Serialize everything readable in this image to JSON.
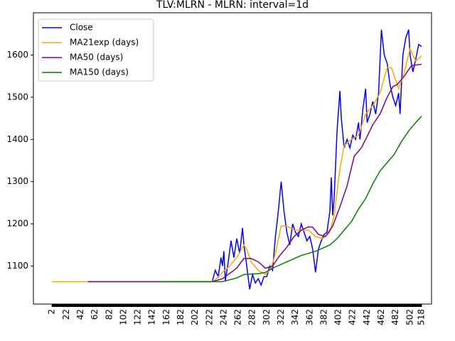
{
  "chart_data": {
    "type": "line",
    "title": "TLV:MLRN - MLRN: interval=1d",
    "xlim": [
      -24,
      532
    ],
    "ylim": [
      1010,
      1700
    ],
    "xticks": [
      2,
      22,
      42,
      62,
      82,
      102,
      122,
      142,
      162,
      182,
      202,
      222,
      242,
      262,
      282,
      302,
      322,
      342,
      362,
      382,
      402,
      422,
      442,
      462,
      482,
      502,
      518
    ],
    "yticks": [
      1100,
      1200,
      1300,
      1400,
      1500,
      1600
    ],
    "legend": "upper left",
    "series": [
      {
        "name": "Close",
        "color": "#0000ff",
        "x": [
          226,
          230,
          234,
          238,
          240,
          242,
          244,
          248,
          252,
          256,
          260,
          264,
          268,
          270,
          274,
          278,
          282,
          286,
          290,
          294,
          298,
          302,
          306,
          310,
          314,
          318,
          322,
          326,
          330,
          334,
          338,
          342,
          346,
          350,
          354,
          358,
          362,
          366,
          370,
          374,
          378,
          382,
          386,
          390,
          392,
          394,
          396,
          400,
          404,
          406,
          410,
          414,
          418,
          422,
          426,
          430,
          432,
          436,
          440,
          442,
          446,
          450,
          454,
          458,
          462,
          466,
          470,
          474,
          478,
          482,
          486,
          488,
          492,
          496,
          500,
          502,
          506,
          510,
          514,
          518
        ],
        "values": [
          1065,
          1090,
          1075,
          1120,
          1100,
          1135,
          1065,
          1110,
          1160,
          1120,
          1165,
          1130,
          1190,
          1150,
          1100,
          1045,
          1080,
          1060,
          1070,
          1055,
          1075,
          1075,
          1100,
          1090,
          1170,
          1230,
          1300,
          1230,
          1180,
          1150,
          1200,
          1180,
          1170,
          1200,
          1180,
          1160,
          1170,
          1140,
          1085,
          1140,
          1160,
          1175,
          1180,
          1230,
          1310,
          1220,
          1260,
          1420,
          1515,
          1450,
          1380,
          1400,
          1380,
          1410,
          1400,
          1440,
          1400,
          1470,
          1520,
          1440,
          1460,
          1490,
          1460,
          1510,
          1660,
          1600,
          1580,
          1530,
          1500,
          1480,
          1510,
          1460,
          1600,
          1640,
          1660,
          1600,
          1560,
          1590,
          1625,
          1620
        ]
      },
      {
        "name": "MA21exp (days)",
        "color": "#ffa500",
        "x": [
          2,
          226,
          230,
          240,
          250,
          260,
          270,
          274,
          280,
          290,
          300,
          308,
          314,
          322,
          330,
          340,
          350,
          360,
          370,
          380,
          390,
          396,
          404,
          410,
          420,
          430,
          440,
          450,
          460,
          470,
          476,
          486,
          494,
          502,
          510,
          518
        ],
        "values": [
          1063,
          1063,
          1068,
          1085,
          1100,
          1120,
          1150,
          1140,
          1110,
          1090,
          1080,
          1095,
          1130,
          1195,
          1195,
          1185,
          1185,
          1185,
          1170,
          1165,
          1180,
          1220,
          1330,
          1385,
          1400,
          1410,
          1460,
          1480,
          1510,
          1570,
          1570,
          1520,
          1560,
          1615,
          1585,
          1598
        ]
      },
      {
        "name": "MA50 (days)",
        "color": "#800080",
        "x": [
          52,
          226,
          240,
          260,
          270,
          280,
          290,
          300,
          310,
          320,
          330,
          340,
          350,
          360,
          366,
          374,
          384,
          394,
          404,
          414,
          424,
          434,
          440,
          450,
          460,
          470,
          478,
          484,
          494,
          504,
          518
        ],
        "values": [
          1063,
          1063,
          1070,
          1095,
          1118,
          1118,
          1110,
          1095,
          1100,
          1125,
          1145,
          1170,
          1185,
          1193,
          1192,
          1175,
          1170,
          1195,
          1240,
          1290,
          1360,
          1380,
          1400,
          1435,
          1460,
          1500,
          1525,
          1530,
          1550,
          1575,
          1578
        ]
      },
      {
        "name": "MA150 (days)",
        "color": "#008000",
        "x": [
          152,
          226,
          240,
          260,
          270,
          290,
          300,
          310,
          330,
          350,
          370,
          390,
          400,
          410,
          420,
          430,
          440,
          450,
          460,
          470,
          480,
          490,
          500,
          510,
          518
        ],
        "values": [
          1063,
          1063,
          1063,
          1072,
          1080,
          1082,
          1085,
          1095,
          1110,
          1125,
          1135,
          1150,
          1165,
          1185,
          1205,
          1235,
          1260,
          1295,
          1325,
          1345,
          1365,
          1395,
          1420,
          1440,
          1455
        ]
      }
    ]
  }
}
